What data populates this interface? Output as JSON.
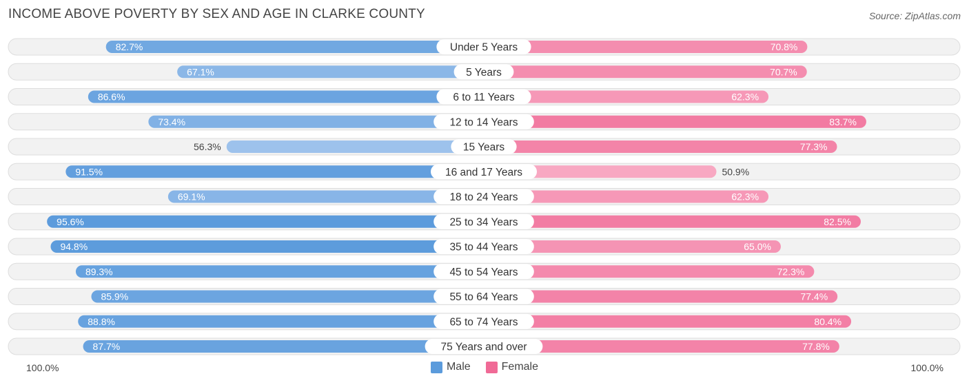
{
  "title": "INCOME ABOVE POVERTY BY SEX AND AGE IN CLARKE COUNTY",
  "source": "Source: ZipAtlas.com",
  "axis": {
    "left_label": "100.0%",
    "right_label": "100.0%"
  },
  "colors": {
    "male_strong": "#5b9bdc",
    "male_light": "#a8c8ee",
    "female_strong": "#f06a96",
    "female_light": "#f8a9c3",
    "row_bg": "#f2f2f2",
    "row_border": "#dddddd"
  },
  "chart_data": {
    "type": "bar",
    "orientation": "horizontal-diverging",
    "title": "INCOME ABOVE POVERTY BY SEX AND AGE IN CLARKE COUNTY",
    "categories": [
      "Under 5 Years",
      "5 Years",
      "6 to 11 Years",
      "12 to 14 Years",
      "15 Years",
      "16 and 17 Years",
      "18 to 24 Years",
      "25 to 34 Years",
      "35 to 44 Years",
      "45 to 54 Years",
      "55 to 64 Years",
      "65 to 74 Years",
      "75 Years and over"
    ],
    "series": [
      {
        "name": "Male",
        "values": [
          82.7,
          67.1,
          86.6,
          73.4,
          56.3,
          91.5,
          69.1,
          95.6,
          94.8,
          89.3,
          85.9,
          88.8,
          87.7
        ],
        "labels": [
          "82.7%",
          "67.1%",
          "86.6%",
          "73.4%",
          "56.3%",
          "91.5%",
          "69.1%",
          "95.6%",
          "94.8%",
          "89.3%",
          "85.9%",
          "88.8%",
          "87.7%"
        ]
      },
      {
        "name": "Female",
        "values": [
          70.8,
          70.7,
          62.3,
          83.7,
          77.3,
          50.9,
          62.3,
          82.5,
          65.0,
          72.3,
          77.4,
          80.4,
          77.8
        ],
        "labels": [
          "70.8%",
          "70.7%",
          "62.3%",
          "83.7%",
          "77.3%",
          "50.9%",
          "62.3%",
          "82.5%",
          "65.0%",
          "72.3%",
          "77.4%",
          "80.4%",
          "77.8%"
        ]
      }
    ],
    "xlim": [
      0,
      100
    ],
    "legend": "bottom-center"
  }
}
